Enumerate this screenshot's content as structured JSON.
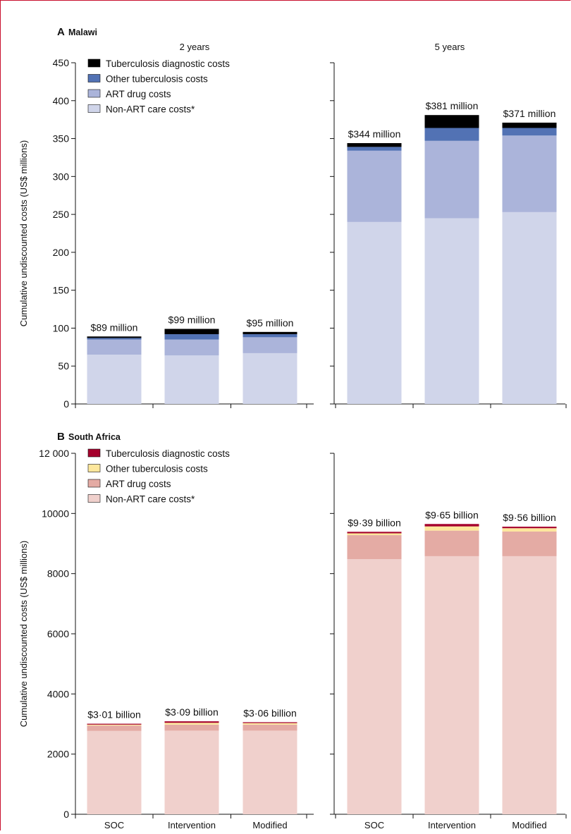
{
  "y_axis_label": "Cumulative undiscounted costs (US$ millions)",
  "categories": [
    "SOC",
    "Intervention",
    "Modified intervention"
  ],
  "chart_data": [
    {
      "type": "bar",
      "stacked": true,
      "panel": "A",
      "title": "Malawi",
      "ylabel": "Cumulative undiscounted costs (US$ millions)",
      "ylim": [
        0,
        450
      ],
      "yticks": [
        0,
        50,
        100,
        150,
        200,
        250,
        300,
        350,
        400,
        450
      ],
      "ytick_labels": [
        "0",
        "50",
        "100",
        "150",
        "200",
        "250",
        "300",
        "350",
        "400",
        "450"
      ],
      "legend_position": "top-left",
      "series": [
        {
          "name": "Non-ART care costs*",
          "color": "#d0d5ea"
        },
        {
          "name": "ART drug costs",
          "color": "#abb4da"
        },
        {
          "name": "Other tuberculosis costs",
          "color": "#5272b4"
        },
        {
          "name": "Tuberculosis diagnostic costs",
          "color": "#000000"
        }
      ],
      "subplots": [
        {
          "label": "2 years",
          "categories": [
            "SOC",
            "Intervention",
            "Modified intervention"
          ],
          "values": [
            [
              65,
              20,
              2,
              2
            ],
            [
              64,
              21,
              7,
              7
            ],
            [
              67,
              21,
              4,
              3
            ]
          ],
          "totals": [
            "$89 million",
            "$99 million",
            "$95 million"
          ]
        },
        {
          "label": "5 years",
          "categories": [
            "SOC",
            "Intervention",
            "Modified intervention"
          ],
          "values": [
            [
              240,
              94,
              5,
              5
            ],
            [
              245,
              102,
              17,
              17
            ],
            [
              253,
              101,
              10,
              7
            ]
          ],
          "totals": [
            "$344 million",
            "$381 million",
            "$371 million"
          ]
        }
      ]
    },
    {
      "type": "bar",
      "stacked": true,
      "panel": "B",
      "title": "South Africa",
      "ylabel": "Cumulative undiscounted costs (US$ millions)",
      "ylim": [
        0,
        12000
      ],
      "yticks": [
        0,
        2000,
        4000,
        6000,
        8000,
        10000,
        12000
      ],
      "ytick_labels": [
        "0",
        "2000",
        "4000",
        "6000",
        "8000",
        "10000",
        "12 000"
      ],
      "legend_position": "top-left",
      "series": [
        {
          "name": "Non-ART care costs*",
          "color": "#f0d0cc"
        },
        {
          "name": "ART drug costs",
          "color": "#e4aba4"
        },
        {
          "name": "Other tuberculosis costs",
          "color": "#fde79c"
        },
        {
          "name": "Tuberculosis diagnostic costs",
          "color": "#a5002c"
        }
      ],
      "subplots": [
        {
          "label": "",
          "categories": [
            "SOC",
            "Intervention",
            "Modified intervention"
          ],
          "values": [
            [
              2770,
              180,
              30,
              30
            ],
            [
              2780,
              200,
              60,
              50
            ],
            [
              2780,
              200,
              50,
              30
            ]
          ],
          "totals": [
            "$3·01 billion",
            "$3·09 billion",
            "$3·06 billion"
          ]
        },
        {
          "label": "",
          "categories": [
            "SOC",
            "Intervention",
            "Modified intervention"
          ],
          "values": [
            [
              8480,
              800,
              60,
              50
            ],
            [
              8580,
              850,
              140,
              80
            ],
            [
              8580,
              820,
              110,
              50
            ]
          ],
          "totals": [
            "$9·39 billion",
            "$9·65 billion",
            "$9·56 billion"
          ]
        }
      ]
    }
  ]
}
